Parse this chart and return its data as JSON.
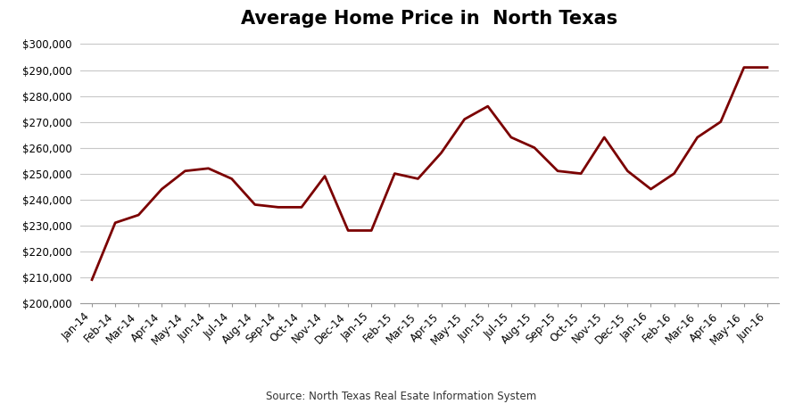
{
  "title": "Average Home Price in  North Texas",
  "source": "Source: North Texas Real Esate Information System",
  "line_color": "#7B0000",
  "line_width": 2.0,
  "background_color": "#FFFFFF",
  "grid_color": "#C8C8C8",
  "ylim": [
    200000,
    303000
  ],
  "yticks": [
    200000,
    210000,
    220000,
    230000,
    240000,
    250000,
    260000,
    270000,
    280000,
    290000,
    300000
  ],
  "labels": [
    "Jan-14",
    "Feb-14",
    "Mar-14",
    "Apr-14",
    "May-14",
    "Jun-14",
    "Jul-14",
    "Aug-14",
    "Sep-14",
    "Oct-14",
    "Nov-14",
    "Dec-14",
    "Jan-15",
    "Feb-15",
    "Mar-15",
    "Apr-15",
    "May-15",
    "Jun-15",
    "Jul-15",
    "Aug-15",
    "Sep-15",
    "Oct-15",
    "Nov-15",
    "Dec-15",
    "Jan-16",
    "Feb-16",
    "Mar-16",
    "Apr-16",
    "May-16",
    "Jun-16"
  ],
  "values": [
    209000,
    231000,
    234000,
    244000,
    251000,
    252000,
    248000,
    238000,
    237000,
    237000,
    249000,
    228000,
    228000,
    250000,
    248000,
    258000,
    271000,
    276000,
    264000,
    260000,
    251000,
    250000,
    264000,
    251000,
    244000,
    250000,
    264000,
    270000,
    291000,
    291000
  ],
  "title_fontsize": 15,
  "tick_labelsize": 8.5,
  "source_fontsize": 8.5
}
